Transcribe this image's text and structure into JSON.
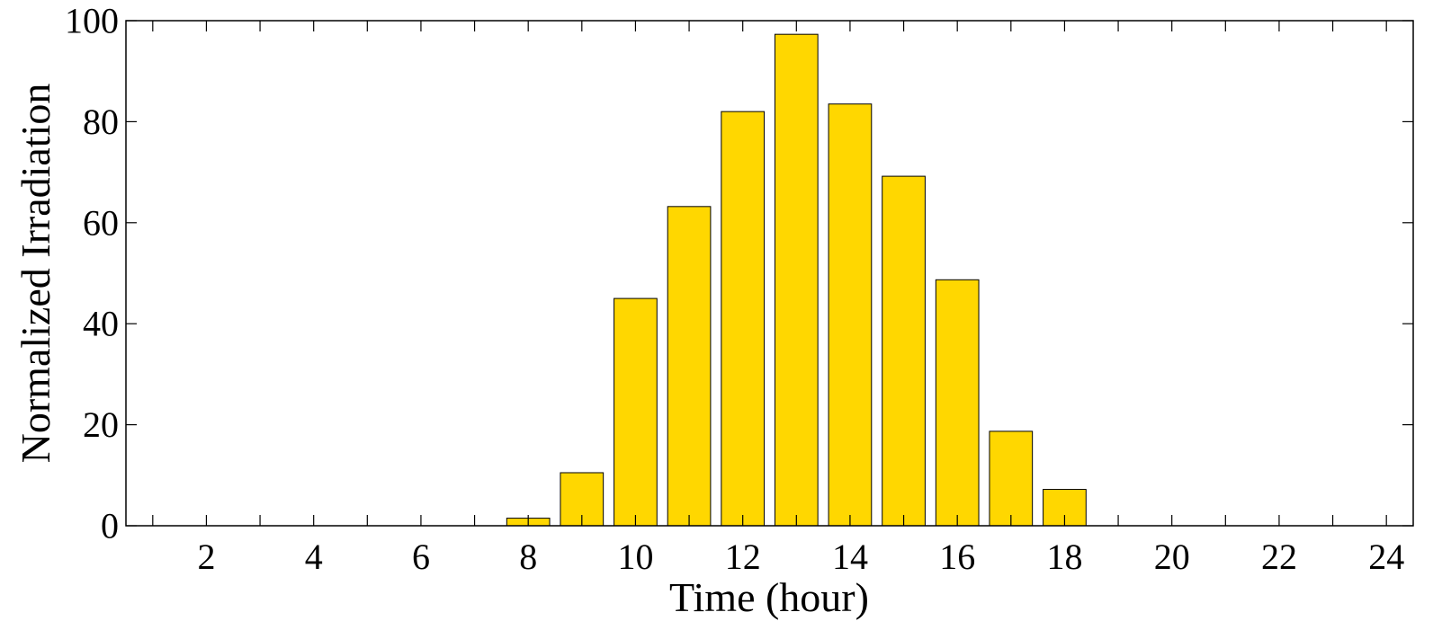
{
  "chart_data": {
    "type": "bar",
    "xlabel": "Time (hour)",
    "ylabel": "Normalized Irradiation",
    "xlim": [
      0.5,
      24.5
    ],
    "ylim": [
      0,
      100
    ],
    "x": [
      1,
      2,
      3,
      4,
      5,
      6,
      7,
      8,
      9,
      10,
      11,
      12,
      13,
      14,
      15,
      16,
      17,
      18,
      19,
      20,
      21,
      22,
      23,
      24
    ],
    "values": [
      0,
      0,
      0,
      0,
      0,
      0,
      0,
      1.5,
      10.5,
      45,
      63.2,
      82,
      97.3,
      83.5,
      69.2,
      48.7,
      18.7,
      7.2,
      0,
      0,
      0,
      0,
      0,
      0
    ],
    "xticks": [
      2,
      4,
      6,
      8,
      10,
      12,
      14,
      16,
      18,
      20,
      22,
      24
    ],
    "yticks": [
      0,
      20,
      40,
      60,
      80,
      100
    ],
    "grid": false,
    "bar_color": "#FFD700",
    "edge_color": "#000000"
  }
}
